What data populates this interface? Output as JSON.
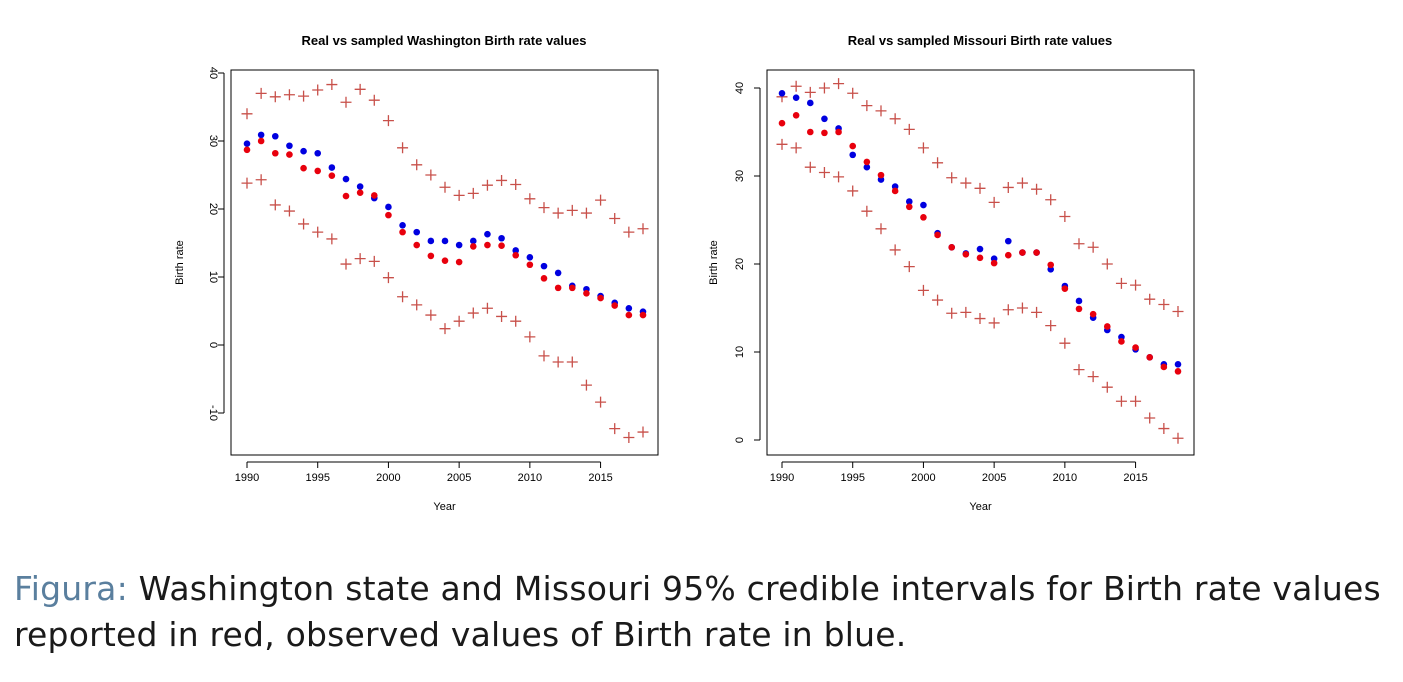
{
  "chart_data": [
    {
      "type": "scatter",
      "title": "Real vs sampled Washington Birth rate values",
      "xlabel": "Year",
      "ylabel": "Birth rate",
      "xlim": [
        1990,
        2018
      ],
      "ylim": [
        -12,
        40
      ],
      "xticks": [
        1990,
        1995,
        2000,
        2005,
        2010,
        2015
      ],
      "yticks": [
        -10,
        0,
        10,
        20,
        30,
        40
      ],
      "grid": false,
      "x": [
        1990,
        1991,
        1992,
        1993,
        1994,
        1995,
        1996,
        1997,
        1998,
        1999,
        2000,
        2001,
        2002,
        2003,
        2004,
        2005,
        2006,
        2007,
        2008,
        2009,
        2010,
        2011,
        2012,
        2013,
        2014,
        2015,
        2016,
        2017,
        2018
      ],
      "series": [
        {
          "role": "upper",
          "marker": "plus",
          "color": "#c8504a",
          "values": [
            34.0,
            37.0,
            36.5,
            36.8,
            36.6,
            37.5,
            38.3,
            35.7,
            37.6,
            36.0,
            33.0,
            29.0,
            26.5,
            25.0,
            23.2,
            22.0,
            22.3,
            23.5,
            24.2,
            23.6,
            21.5,
            20.2,
            19.4,
            19.8,
            19.4,
            21.3,
            18.6,
            16.6,
            17.1
          ]
        },
        {
          "role": "lower",
          "marker": "plus",
          "color": "#c8504a",
          "values": [
            23.8,
            24.3,
            20.6,
            19.7,
            17.8,
            16.6,
            15.6,
            11.9,
            12.7,
            12.3,
            9.9,
            7.1,
            5.9,
            4.4,
            2.4,
            3.5,
            4.7,
            5.4,
            4.2,
            3.5,
            1.2,
            -1.6,
            -2.5,
            -2.5,
            -5.9,
            -8.4,
            -12.3,
            -13.6,
            -12.8
          ]
        },
        {
          "role": "sampled",
          "marker": "dot",
          "color": "#e8000d",
          "values": [
            28.7,
            30.0,
            28.2,
            28.0,
            26.0,
            25.6,
            24.9,
            21.9,
            22.4,
            22.0,
            19.1,
            16.6,
            14.7,
            13.1,
            12.4,
            12.2,
            14.5,
            14.7,
            14.6,
            13.2,
            11.8,
            9.8,
            8.4,
            8.4,
            7.6,
            6.9,
            5.8,
            4.4,
            4.4
          ]
        },
        {
          "role": "observed",
          "marker": "dot",
          "color": "#0000e0",
          "values": [
            29.6,
            30.9,
            30.7,
            29.3,
            28.5,
            28.2,
            26.1,
            24.4,
            23.3,
            21.6,
            20.3,
            17.6,
            16.6,
            15.3,
            15.3,
            14.7,
            15.3,
            16.3,
            15.7,
            13.9,
            12.9,
            11.6,
            10.6,
            8.7,
            8.2,
            7.2,
            6.2,
            5.4,
            4.9
          ]
        }
      ]
    },
    {
      "type": "scatter",
      "title": "Real vs sampled Missouri Birth rate values",
      "xlabel": "Year",
      "ylabel": "Birth rate",
      "xlim": [
        1990,
        2018
      ],
      "ylim": [
        -1,
        42
      ],
      "xticks": [
        1990,
        1995,
        2000,
        2005,
        2010,
        2015
      ],
      "yticks": [
        0,
        10,
        20,
        30,
        40
      ],
      "grid": false,
      "x": [
        1990,
        1991,
        1992,
        1993,
        1994,
        1995,
        1996,
        1997,
        1998,
        1999,
        2000,
        2001,
        2002,
        2003,
        2004,
        2005,
        2006,
        2007,
        2008,
        2009,
        2010,
        2011,
        2012,
        2013,
        2014,
        2015,
        2016,
        2017,
        2018
      ],
      "series": [
        {
          "role": "upper",
          "marker": "plus",
          "color": "#c8504a",
          "values": [
            39.0,
            40.2,
            39.5,
            40.0,
            40.5,
            39.4,
            38.0,
            37.4,
            36.5,
            35.3,
            33.2,
            31.5,
            29.8,
            29.2,
            28.6,
            27.0,
            28.7,
            29.2,
            28.5,
            27.3,
            25.4,
            22.3,
            21.9,
            20.0,
            17.8,
            17.6,
            16.0,
            15.4,
            14.6
          ]
        },
        {
          "role": "lower",
          "marker": "plus",
          "color": "#c8504a",
          "values": [
            33.6,
            33.2,
            31.0,
            30.4,
            29.9,
            28.3,
            26.0,
            24.0,
            21.6,
            19.7,
            17.0,
            15.9,
            14.4,
            14.5,
            13.8,
            13.3,
            14.8,
            15.0,
            14.5,
            13.0,
            11.0,
            8.0,
            7.2,
            6.0,
            4.4,
            4.4,
            2.5,
            1.3,
            0.2
          ]
        },
        {
          "role": "sampled",
          "marker": "dot",
          "color": "#e8000d",
          "values": [
            36.0,
            36.9,
            35.0,
            34.9,
            35.0,
            33.4,
            31.6,
            30.1,
            28.3,
            26.5,
            25.3,
            23.3,
            21.9,
            21.1,
            20.7,
            20.1,
            21.0,
            21.3,
            21.3,
            19.9,
            17.2,
            14.9,
            14.3,
            12.9,
            11.2,
            10.5,
            9.4,
            8.3,
            7.8
          ]
        },
        {
          "role": "observed",
          "marker": "dot",
          "color": "#0000e0",
          "values": [
            39.4,
            38.9,
            38.3,
            36.5,
            35.4,
            32.4,
            31.0,
            29.6,
            28.8,
            27.1,
            26.7,
            23.5,
            21.9,
            21.2,
            21.7,
            20.6,
            22.6,
            21.3,
            21.3,
            19.4,
            17.5,
            15.8,
            13.9,
            12.5,
            11.7,
            10.3,
            9.4,
            8.6,
            8.6
          ]
        }
      ]
    }
  ],
  "caption": {
    "label": "Figura:",
    "text": " Washington state and Missouri 95% credible intervals for Birth rate values reported in red, observed values of Birth rate in blue."
  }
}
